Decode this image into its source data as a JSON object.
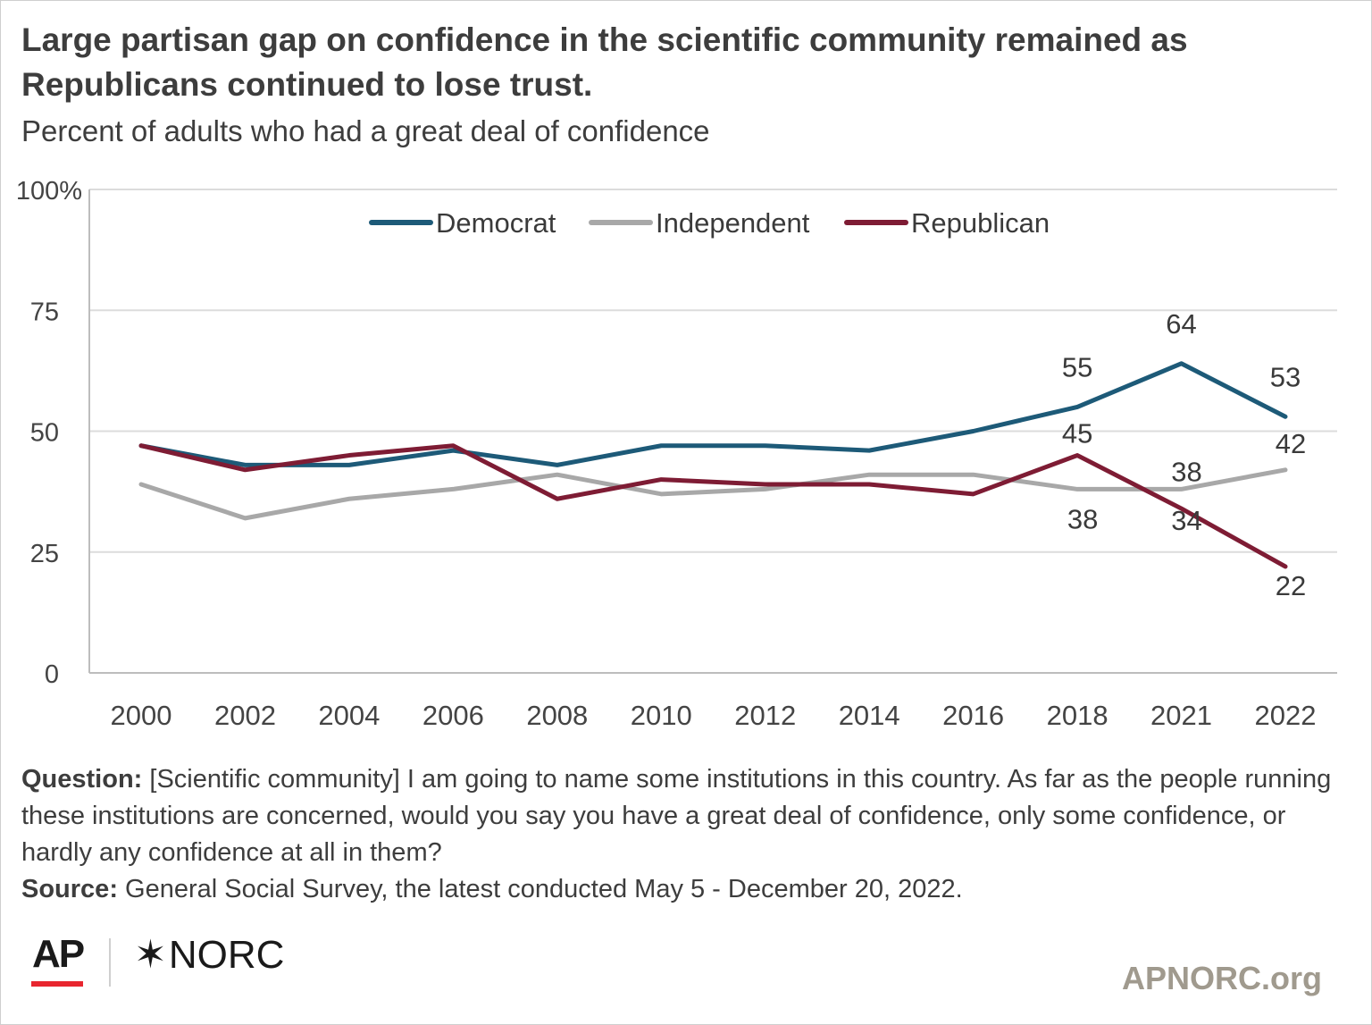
{
  "title": "Large partisan gap on confidence in the scientific community remained as Republicans continued to lose trust.",
  "subtitle": "Percent of adults who had a great deal of confidence",
  "chart_data": {
    "type": "line",
    "categories": [
      "2000",
      "2002",
      "2004",
      "2006",
      "2008",
      "2010",
      "2012",
      "2014",
      "2016",
      "2018",
      "2021",
      "2022"
    ],
    "yticks": [
      "0",
      "25",
      "50",
      "75",
      "100%"
    ],
    "ylim": [
      0,
      100
    ],
    "grid": true,
    "legend_placement": "top-center",
    "series": [
      {
        "name": "Democrat",
        "color": "#1d5a78",
        "values": [
          47,
          43,
          43,
          46,
          43,
          47,
          47,
          46,
          50,
          55,
          64,
          53
        ],
        "labels": [
          null,
          null,
          null,
          null,
          null,
          null,
          null,
          null,
          null,
          "55",
          "64",
          "53"
        ]
      },
      {
        "name": "Independent",
        "color": "#a8a8a8",
        "values": [
          39,
          32,
          36,
          38,
          41,
          37,
          38,
          41,
          41,
          38,
          38,
          42
        ],
        "labels": [
          null,
          null,
          null,
          null,
          null,
          null,
          null,
          null,
          null,
          "38",
          "38",
          "42"
        ]
      },
      {
        "name": "Republican",
        "color": "#7e1c34",
        "values": [
          47,
          42,
          45,
          47,
          36,
          40,
          39,
          39,
          37,
          45,
          34,
          22
        ],
        "labels": [
          null,
          null,
          null,
          null,
          null,
          null,
          null,
          null,
          null,
          "45",
          "34",
          "22"
        ]
      }
    ]
  },
  "footnote": {
    "question_label": "Question:",
    "question_text": " [Scientific community] I am going to name some institutions in this country. As far as the people running these institutions are concerned, would you say you have a great deal of confidence, only some confidence, or hardly any confidence at all in them?",
    "source_label": "Source:",
    "source_text": " General Social Survey, the latest conducted May 5 - December 20, 2022."
  },
  "logos": {
    "ap": "AP",
    "norc_star": "✶",
    "norc": "NORC",
    "site": "APNORC.org"
  }
}
